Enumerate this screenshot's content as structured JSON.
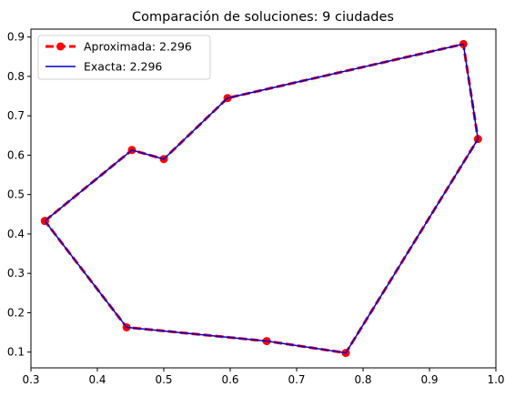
{
  "chart_data": {
    "type": "line",
    "title": "Comparación de soluciones: 9 ciudades",
    "xlabel": "",
    "ylabel": "",
    "xlim": [
      0.3,
      1.0
    ],
    "ylim": [
      0.06,
      0.92
    ],
    "xticks": [
      "0.3",
      "0.4",
      "0.5",
      "0.6",
      "0.7",
      "0.8",
      "0.9",
      "1.0"
    ],
    "yticks": [
      "0.1",
      "0.2",
      "0.3",
      "0.4",
      "0.5",
      "0.6",
      "0.7",
      "0.8",
      "0.9"
    ],
    "grid": false,
    "legend_position": "top-left",
    "series": [
      {
        "name": "Aproximada: 2.296",
        "color": "#ff0000",
        "style": "dashed-with-circle-markers",
        "x": [
          0.321,
          0.452,
          0.5,
          0.596,
          0.951,
          0.973,
          0.774,
          0.655,
          0.444,
          0.321
        ],
        "y": [
          0.433,
          0.613,
          0.59,
          0.745,
          0.882,
          0.641,
          0.098,
          0.128,
          0.163,
          0.433
        ]
      },
      {
        "name": "Exacta: 2.296",
        "color": "#0000cc",
        "style": "solid",
        "x": [
          0.321,
          0.452,
          0.5,
          0.596,
          0.951,
          0.973,
          0.774,
          0.655,
          0.444,
          0.321
        ],
        "y": [
          0.433,
          0.613,
          0.59,
          0.745,
          0.882,
          0.641,
          0.098,
          0.128,
          0.163,
          0.433
        ]
      }
    ]
  }
}
